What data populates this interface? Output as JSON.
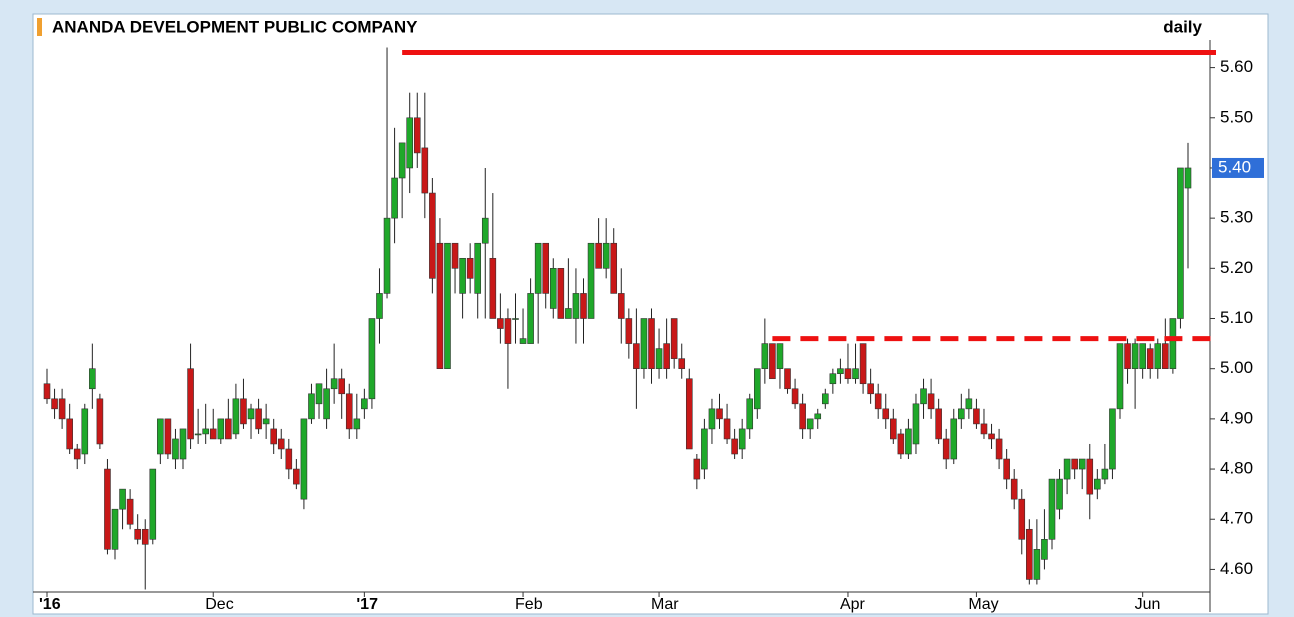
{
  "chart_data": {
    "type": "candlestick",
    "title": "ANANDA DEVELOPMENT PUBLIC COMPANY",
    "subtitle": "daily",
    "ylim": [
      4.555,
      5.655
    ],
    "yticks": [
      {
        "value": 4.6,
        "label": "4.60"
      },
      {
        "value": 4.7,
        "label": "4.70"
      },
      {
        "value": 4.8,
        "label": "4.80"
      },
      {
        "value": 4.9,
        "label": "4.90"
      },
      {
        "value": 5.0,
        "label": "5.00"
      },
      {
        "value": 5.1,
        "label": "5.10"
      },
      {
        "value": 5.2,
        "label": "5.20"
      },
      {
        "value": 5.3,
        "label": "5.30"
      },
      {
        "value": 5.4,
        "label": "5.40"
      },
      {
        "value": 5.5,
        "label": "5.50"
      },
      {
        "value": 5.6,
        "label": "5.60"
      }
    ],
    "x_labels": [
      {
        "index": 0,
        "label": "'16"
      },
      {
        "index": 22,
        "label": "Dec"
      },
      {
        "index": 42,
        "label": "'17"
      },
      {
        "index": 63,
        "label": "Feb"
      },
      {
        "index": 81,
        "label": "Mar"
      },
      {
        "index": 106,
        "label": "Apr"
      },
      {
        "index": 123,
        "label": "May"
      },
      {
        "index": 145,
        "label": "Jun"
      }
    ],
    "up_color": "#1fa82a",
    "down_color": "#c81818",
    "last_price_label": "5.40",
    "lines": [
      {
        "value": 5.63,
        "from": 47,
        "style": "solid",
        "color": "#ee1111"
      },
      {
        "value": 5.06,
        "from": 96,
        "style": "dashed",
        "color": "#ee1111"
      }
    ],
    "ohlc": [
      [
        4.97,
        5.0,
        4.93,
        4.94
      ],
      [
        4.94,
        4.96,
        4.9,
        4.92
      ],
      [
        4.94,
        4.96,
        4.88,
        4.9
      ],
      [
        4.9,
        4.93,
        4.83,
        4.84
      ],
      [
        4.84,
        4.85,
        4.8,
        4.82
      ],
      [
        4.83,
        4.93,
        4.81,
        4.92
      ],
      [
        4.96,
        5.05,
        4.92,
        5.0
      ],
      [
        4.94,
        4.95,
        4.84,
        4.85
      ],
      [
        4.8,
        4.82,
        4.63,
        4.64
      ],
      [
        4.64,
        4.72,
        4.62,
        4.72
      ],
      [
        4.72,
        4.76,
        4.68,
        4.76
      ],
      [
        4.74,
        4.76,
        4.68,
        4.69
      ],
      [
        4.68,
        4.71,
        4.65,
        4.66
      ],
      [
        4.68,
        4.7,
        4.56,
        4.65
      ],
      [
        4.66,
        4.8,
        4.65,
        4.8
      ],
      [
        4.83,
        4.9,
        4.81,
        4.9
      ],
      [
        4.9,
        4.9,
        4.82,
        4.83
      ],
      [
        4.82,
        4.88,
        4.8,
        4.86
      ],
      [
        4.82,
        4.88,
        4.8,
        4.88
      ],
      [
        5.0,
        5.05,
        4.84,
        4.86
      ],
      [
        4.87,
        4.92,
        4.85,
        4.87
      ],
      [
        4.87,
        4.93,
        4.85,
        4.88
      ],
      [
        4.88,
        4.92,
        4.86,
        4.86
      ],
      [
        4.86,
        4.9,
        4.85,
        4.9
      ],
      [
        4.9,
        4.94,
        4.86,
        4.86
      ],
      [
        4.87,
        4.97,
        4.86,
        4.94
      ],
      [
        4.94,
        4.98,
        4.88,
        4.89
      ],
      [
        4.9,
        4.93,
        4.86,
        4.92
      ],
      [
        4.92,
        4.94,
        4.87,
        4.88
      ],
      [
        4.89,
        4.93,
        4.86,
        4.9
      ],
      [
        4.88,
        4.9,
        4.83,
        4.85
      ],
      [
        4.86,
        4.88,
        4.82,
        4.84
      ],
      [
        4.84,
        4.86,
        4.78,
        4.8
      ],
      [
        4.8,
        4.82,
        4.76,
        4.77
      ],
      [
        4.74,
        4.9,
        4.72,
        4.9
      ],
      [
        4.9,
        4.97,
        4.89,
        4.95
      ],
      [
        4.93,
        4.97,
        4.9,
        4.97
      ],
      [
        4.9,
        5.0,
        4.88,
        4.96
      ],
      [
        4.96,
        5.05,
        4.93,
        4.98
      ],
      [
        4.98,
        5.0,
        4.9,
        4.95
      ],
      [
        4.95,
        4.97,
        4.86,
        4.88
      ],
      [
        4.88,
        4.95,
        4.86,
        4.9
      ],
      [
        4.92,
        4.96,
        4.9,
        4.94
      ],
      [
        4.94,
        5.1,
        4.92,
        5.1
      ],
      [
        5.1,
        5.2,
        5.05,
        5.15
      ],
      [
        5.15,
        5.64,
        5.14,
        5.3
      ],
      [
        5.3,
        5.48,
        5.25,
        5.38
      ],
      [
        5.38,
        5.45,
        5.3,
        5.45
      ],
      [
        5.4,
        5.55,
        5.35,
        5.5
      ],
      [
        5.5,
        5.55,
        5.4,
        5.43
      ],
      [
        5.44,
        5.55,
        5.3,
        5.35
      ],
      [
        5.35,
        5.38,
        5.15,
        5.18
      ],
      [
        5.25,
        5.3,
        5.0,
        5.0
      ],
      [
        5.0,
        5.25,
        5.0,
        5.25
      ],
      [
        5.25,
        5.25,
        5.15,
        5.2
      ],
      [
        5.15,
        5.22,
        5.1,
        5.22
      ],
      [
        5.22,
        5.25,
        5.15,
        5.18
      ],
      [
        5.15,
        5.25,
        5.1,
        5.25
      ],
      [
        5.25,
        5.4,
        5.1,
        5.3
      ],
      [
        5.22,
        5.35,
        5.1,
        5.1
      ],
      [
        5.1,
        5.15,
        5.05,
        5.08
      ],
      [
        5.1,
        5.12,
        4.96,
        5.05
      ],
      [
        5.1,
        5.15,
        5.05,
        5.1
      ],
      [
        5.05,
        5.12,
        5.05,
        5.06
      ],
      [
        5.05,
        5.18,
        5.05,
        5.15
      ],
      [
        5.15,
        5.25,
        5.05,
        5.25
      ],
      [
        5.25,
        5.25,
        5.12,
        5.15
      ],
      [
        5.12,
        5.22,
        5.1,
        5.2
      ],
      [
        5.2,
        5.2,
        5.1,
        5.1
      ],
      [
        5.1,
        5.22,
        5.1,
        5.12
      ],
      [
        5.1,
        5.2,
        5.05,
        5.15
      ],
      [
        5.15,
        5.18,
        5.05,
        5.1
      ],
      [
        5.1,
        5.25,
        5.1,
        5.25
      ],
      [
        5.25,
        5.3,
        5.2,
        5.2
      ],
      [
        5.2,
        5.3,
        5.18,
        5.25
      ],
      [
        5.25,
        5.28,
        5.15,
        5.15
      ],
      [
        5.15,
        5.2,
        5.05,
        5.1
      ],
      [
        5.1,
        5.12,
        5.02,
        5.05
      ],
      [
        5.05,
        5.12,
        4.92,
        5.0
      ],
      [
        5.0,
        5.1,
        4.98,
        5.1
      ],
      [
        5.1,
        5.12,
        4.97,
        5.0
      ],
      [
        5.0,
        5.08,
        4.98,
        5.04
      ],
      [
        5.05,
        5.1,
        4.98,
        5.0
      ],
      [
        5.1,
        5.1,
        5.0,
        5.02
      ],
      [
        5.02,
        5.05,
        4.98,
        5.0
      ],
      [
        4.98,
        5.0,
        4.84,
        4.84
      ],
      [
        4.82,
        4.83,
        4.76,
        4.78
      ],
      [
        4.8,
        4.9,
        4.78,
        4.88
      ],
      [
        4.88,
        4.94,
        4.85,
        4.92
      ],
      [
        4.92,
        4.95,
        4.88,
        4.9
      ],
      [
        4.9,
        4.93,
        4.85,
        4.86
      ],
      [
        4.86,
        4.88,
        4.82,
        4.83
      ],
      [
        4.84,
        4.9,
        4.82,
        4.88
      ],
      [
        4.88,
        4.95,
        4.86,
        4.94
      ],
      [
        4.92,
        5.0,
        4.9,
        5.0
      ],
      [
        5.0,
        5.1,
        4.97,
        5.05
      ],
      [
        5.05,
        5.05,
        4.98,
        4.98
      ],
      [
        5.0,
        5.05,
        4.96,
        5.05
      ],
      [
        5.0,
        5.0,
        4.95,
        4.96
      ],
      [
        4.96,
        4.98,
        4.92,
        4.93
      ],
      [
        4.93,
        4.95,
        4.86,
        4.88
      ],
      [
        4.88,
        4.9,
        4.86,
        4.9
      ],
      [
        4.9,
        4.92,
        4.88,
        4.91
      ],
      [
        4.93,
        4.96,
        4.92,
        4.95
      ],
      [
        4.97,
        5.0,
        4.95,
        4.99
      ],
      [
        4.99,
        5.02,
        4.97,
        5.0
      ],
      [
        5.0,
        5.05,
        4.97,
        4.98
      ],
      [
        4.98,
        5.05,
        4.97,
        5.0
      ],
      [
        5.05,
        5.05,
        4.95,
        4.97
      ],
      [
        4.97,
        5.0,
        4.93,
        4.95
      ],
      [
        4.95,
        4.97,
        4.9,
        4.92
      ],
      [
        4.92,
        4.95,
        4.88,
        4.9
      ],
      [
        4.9,
        4.92,
        4.85,
        4.86
      ],
      [
        4.87,
        4.88,
        4.82,
        4.83
      ],
      [
        4.83,
        4.9,
        4.82,
        4.88
      ],
      [
        4.85,
        4.95,
        4.83,
        4.93
      ],
      [
        4.93,
        4.98,
        4.9,
        4.96
      ],
      [
        4.95,
        4.98,
        4.9,
        4.92
      ],
      [
        4.92,
        4.94,
        4.85,
        4.86
      ],
      [
        4.86,
        4.88,
        4.8,
        4.82
      ],
      [
        4.82,
        4.92,
        4.81,
        4.9
      ],
      [
        4.9,
        4.95,
        4.88,
        4.92
      ],
      [
        4.92,
        4.96,
        4.9,
        4.94
      ],
      [
        4.92,
        4.94,
        4.88,
        4.89
      ],
      [
        4.89,
        4.92,
        4.86,
        4.87
      ],
      [
        4.87,
        4.89,
        4.84,
        4.86
      ],
      [
        4.86,
        4.88,
        4.8,
        4.82
      ],
      [
        4.82,
        4.84,
        4.76,
        4.78
      ],
      [
        4.78,
        4.8,
        4.72,
        4.74
      ],
      [
        4.74,
        4.76,
        4.63,
        4.66
      ],
      [
        4.68,
        4.7,
        4.57,
        4.58
      ],
      [
        4.58,
        4.7,
        4.57,
        4.64
      ],
      [
        4.62,
        4.72,
        4.6,
        4.66
      ],
      [
        4.66,
        4.78,
        4.64,
        4.78
      ],
      [
        4.72,
        4.8,
        4.7,
        4.78
      ],
      [
        4.78,
        4.82,
        4.75,
        4.82
      ],
      [
        4.82,
        4.82,
        4.78,
        4.8
      ],
      [
        4.8,
        4.82,
        4.76,
        4.82
      ],
      [
        4.82,
        4.85,
        4.7,
        4.75
      ],
      [
        4.76,
        4.8,
        4.74,
        4.78
      ],
      [
        4.78,
        4.85,
        4.77,
        4.8
      ],
      [
        4.8,
        4.92,
        4.78,
        4.92
      ],
      [
        4.92,
        5.05,
        4.9,
        5.05
      ],
      [
        5.05,
        5.06,
        4.97,
        5.0
      ],
      [
        5.0,
        5.06,
        4.92,
        5.05
      ],
      [
        5.0,
        5.05,
        4.98,
        5.05
      ],
      [
        5.04,
        5.05,
        4.98,
        5.0
      ],
      [
        5.0,
        5.06,
        4.98,
        5.05
      ],
      [
        5.05,
        5.1,
        5.0,
        5.0
      ],
      [
        5.0,
        5.1,
        4.99,
        5.1
      ],
      [
        5.1,
        5.4,
        5.08,
        5.4
      ],
      [
        5.36,
        5.45,
        5.2,
        5.4
      ]
    ]
  }
}
